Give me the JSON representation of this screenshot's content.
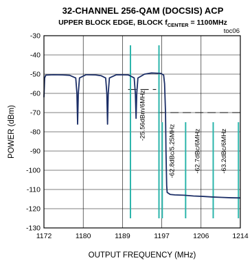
{
  "chart_data": {
    "type": "line",
    "title": "32-CHANNEL 256-QAM (DOCSIS) ACP",
    "subtitle_pre": "UPPER BLOCK EDGE, BLOCK f",
    "subtitle_sub": "CENTER",
    "subtitle_post": " = 1100MHz",
    "figure_id": "toc06",
    "xlabel": "OUTPUT FREQUENCY (MHz)",
    "ylabel": "POWER (dBm)",
    "xlim": [
      1172,
      1214
    ],
    "ylim": [
      -130,
      -30
    ],
    "x_ticks": [
      "1172",
      "1180",
      "1189",
      "1197",
      "1206",
      "1214"
    ],
    "y_ticks": [
      "-30",
      "-40",
      "-50",
      "-60",
      "-70",
      "-80",
      "-90",
      "-100",
      "-110",
      "-120",
      "-130"
    ],
    "grid": true,
    "series": [
      {
        "color": "#1a2d66",
        "points": [
          [
            1172.0,
            -62
          ],
          [
            1172.15,
            -52
          ],
          [
            1172.4,
            -50.5
          ],
          [
            1174,
            -50.3
          ],
          [
            1176,
            -50.4
          ],
          [
            1177.5,
            -50.6
          ],
          [
            1178.8,
            -52
          ],
          [
            1179.05,
            -60
          ],
          [
            1179.2,
            -76
          ],
          [
            1179.35,
            -60
          ],
          [
            1179.6,
            -52
          ],
          [
            1181,
            -50.3
          ],
          [
            1183,
            -50.4
          ],
          [
            1184.2,
            -50.8
          ],
          [
            1185.2,
            -52
          ],
          [
            1185.45,
            -60
          ],
          [
            1185.6,
            -76
          ],
          [
            1185.75,
            -60
          ],
          [
            1186.0,
            -52
          ],
          [
            1187.5,
            -50.3
          ],
          [
            1190,
            -50.4
          ],
          [
            1190.4,
            -50.8
          ],
          [
            1191.3,
            -52
          ],
          [
            1191.55,
            -60
          ],
          [
            1191.7,
            -73
          ],
          [
            1191.85,
            -60
          ],
          [
            1192.1,
            -52
          ],
          [
            1193.5,
            -50
          ],
          [
            1195,
            -49.4
          ],
          [
            1197,
            -49.6
          ],
          [
            1197.6,
            -50.5
          ],
          [
            1197.8,
            -55
          ],
          [
            1198.0,
            -70
          ],
          [
            1198.1,
            -90
          ],
          [
            1198.25,
            -108
          ],
          [
            1198.35,
            -111.5
          ],
          [
            1199,
            -112.6
          ],
          [
            1200,
            -112.8
          ],
          [
            1202,
            -113
          ],
          [
            1204,
            -113.4
          ],
          [
            1206,
            -113.6
          ],
          [
            1208,
            -113.9
          ],
          [
            1210,
            -114.1
          ],
          [
            1212,
            -114.3
          ],
          [
            1214,
            -114.4
          ]
        ]
      }
    ],
    "markers": {
      "color": "#2bb5ab",
      "lines": [
        {
          "x": 1190.5,
          "y_top": -35,
          "y_bottom": -125
        },
        {
          "x": 1196.6,
          "y_top": -35,
          "y_bottom": -125
        },
        {
          "x": 1197.3,
          "y_top": -75,
          "y_bottom": -125
        },
        {
          "x": 1202.3,
          "y_top": -75,
          "y_bottom": -125
        },
        {
          "x": 1208.2,
          "y_top": -75,
          "y_bottom": -125
        },
        {
          "x": 1213.6,
          "y_top": -75,
          "y_bottom": -125
        }
      ]
    },
    "reference_lines": [
      {
        "x_start": 1190.0,
        "x_end": 1196.0,
        "y": -58
      },
      {
        "x_start": 1196.4,
        "x_end": 1214,
        "y": -70
      }
    ],
    "annotations": [
      {
        "text": "-25.56dBm/6MHz",
        "x": 1193.55,
        "y": -71.5
      },
      {
        "text": "-62.8dBc/5.25MHz",
        "x": 1199.8,
        "y": -90
      },
      {
        "text": "-62.7dBc/6MHz",
        "x": 1205.25,
        "y": -90
      },
      {
        "text": "-63.2dBc/6MHz",
        "x": 1210.9,
        "y": -90
      }
    ]
  }
}
